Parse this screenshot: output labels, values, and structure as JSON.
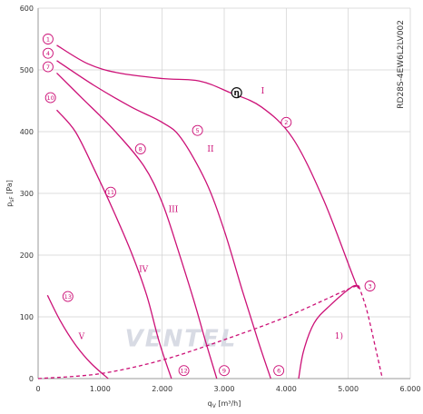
{
  "chart_data": {
    "type": "line",
    "xlabel": "q",
    "xlabel_sub": "V",
    "xlabel_unit": " [m³/h]",
    "ylabel": "p",
    "ylabel_sub": "sF",
    "ylabel_unit": " [Pa]",
    "xlim": [
      0,
      6000
    ],
    "ylim": [
      0,
      600
    ],
    "x_ticks": [
      {
        "v": 0,
        "label": "0"
      },
      {
        "v": 1000,
        "label": "1.000"
      },
      {
        "v": 2000,
        "label": "2.000"
      },
      {
        "v": 3000,
        "label": "3.000"
      },
      {
        "v": 4000,
        "label": "4.000"
      },
      {
        "v": 5000,
        "label": "5.000"
      },
      {
        "v": 6000,
        "label": "6.000"
      }
    ],
    "y_ticks": [
      {
        "v": 0,
        "label": "0"
      },
      {
        "v": 100,
        "label": "100"
      },
      {
        "v": 200,
        "label": "200"
      },
      {
        "v": 300,
        "label": "300"
      },
      {
        "v": 400,
        "label": "400"
      },
      {
        "v": 500,
        "label": "500"
      },
      {
        "v": 600,
        "label": "600"
      }
    ],
    "grid": true,
    "model_label": "RD28S-4EW6L2LV002",
    "watermark": "VENTEL",
    "colors": {
      "curve": "#cc1177",
      "grid": "#d0d0d0",
      "axis": "#999999",
      "text": "#333333"
    },
    "series": [
      {
        "id": "I",
        "dashed": false,
        "points": [
          [
            300,
            540
          ],
          [
            800,
            510
          ],
          [
            1300,
            495
          ],
          [
            2000,
            486
          ],
          [
            2600,
            482
          ],
          [
            3100,
            463
          ],
          [
            3600,
            440
          ],
          [
            4100,
            390
          ],
          [
            4600,
            290
          ],
          [
            5100,
            160
          ],
          [
            5170,
            150
          ]
        ]
      },
      {
        "id": "II",
        "dashed": false,
        "points": [
          [
            300,
            515
          ],
          [
            900,
            475
          ],
          [
            1500,
            440
          ],
          [
            2000,
            415
          ],
          [
            2300,
            390
          ],
          [
            2700,
            320
          ],
          [
            3000,
            240
          ],
          [
            3300,
            140
          ],
          [
            3550,
            60
          ],
          [
            3750,
            0
          ]
        ]
      },
      {
        "id": "III",
        "dashed": false,
        "points": [
          [
            300,
            495
          ],
          [
            700,
            455
          ],
          [
            1200,
            405
          ],
          [
            1700,
            345
          ],
          [
            2000,
            285
          ],
          [
            2250,
            210
          ],
          [
            2500,
            130
          ],
          [
            2700,
            60
          ],
          [
            2880,
            0
          ]
        ]
      },
      {
        "id": "IV",
        "dashed": false,
        "points": [
          [
            300,
            435
          ],
          [
            600,
            400
          ],
          [
            900,
            340
          ],
          [
            1200,
            275
          ],
          [
            1500,
            205
          ],
          [
            1750,
            135
          ],
          [
            1950,
            60
          ],
          [
            2150,
            0
          ]
        ]
      },
      {
        "id": "V",
        "dashed": false,
        "points": [
          [
            150,
            135
          ],
          [
            350,
            95
          ],
          [
            600,
            55
          ],
          [
            850,
            25
          ],
          [
            1130,
            0
          ]
        ]
      },
      {
        "id": "system",
        "dashed": true,
        "points": [
          [
            0,
            0
          ],
          [
            1000,
            8
          ],
          [
            2000,
            30
          ],
          [
            3000,
            63
          ],
          [
            4000,
            100
          ],
          [
            5000,
            145
          ],
          [
            5170,
            150
          ]
        ]
      },
      {
        "id": "stall",
        "dashed": true,
        "points": [
          [
            5170,
            150
          ],
          [
            5300,
            110
          ],
          [
            5450,
            45
          ],
          [
            5550,
            0
          ]
        ]
      },
      {
        "id": "1)",
        "dashed": false,
        "points": [
          [
            4200,
            0
          ],
          [
            4280,
            45
          ],
          [
            4450,
            90
          ],
          [
            4700,
            118
          ],
          [
            5050,
            148
          ],
          [
            5170,
            150
          ]
        ]
      }
    ],
    "markers": [
      {
        "label": "1",
        "x": 160,
        "y": 550
      },
      {
        "label": "2",
        "x": 4000,
        "y": 415
      },
      {
        "label": "3",
        "x": 5350,
        "y": 150
      },
      {
        "label": "4",
        "x": 160,
        "y": 527
      },
      {
        "label": "5",
        "x": 2570,
        "y": 402
      },
      {
        "label": "6",
        "x": 3880,
        "y": 13
      },
      {
        "label": "7",
        "x": 160,
        "y": 505
      },
      {
        "label": "8",
        "x": 1650,
        "y": 372
      },
      {
        "label": "9",
        "x": 3000,
        "y": 13
      },
      {
        "label": "10",
        "x": 200,
        "y": 455
      },
      {
        "label": "11",
        "x": 1170,
        "y": 302
      },
      {
        "label": "12",
        "x": 2350,
        "y": 13
      },
      {
        "label": "13",
        "x": 480,
        "y": 133
      }
    ],
    "efficiency_marker": {
      "label": "η",
      "x": 3200,
      "y": 463
    },
    "region_labels": [
      {
        "label": "I",
        "x": 3620,
        "y": 462
      },
      {
        "label": "II",
        "x": 2780,
        "y": 368
      },
      {
        "label": "III",
        "x": 2180,
        "y": 270
      },
      {
        "label": "IV",
        "x": 1700,
        "y": 173
      },
      {
        "label": "V",
        "x": 700,
        "y": 64
      },
      {
        "label": "1)",
        "x": 4850,
        "y": 65
      }
    ]
  }
}
